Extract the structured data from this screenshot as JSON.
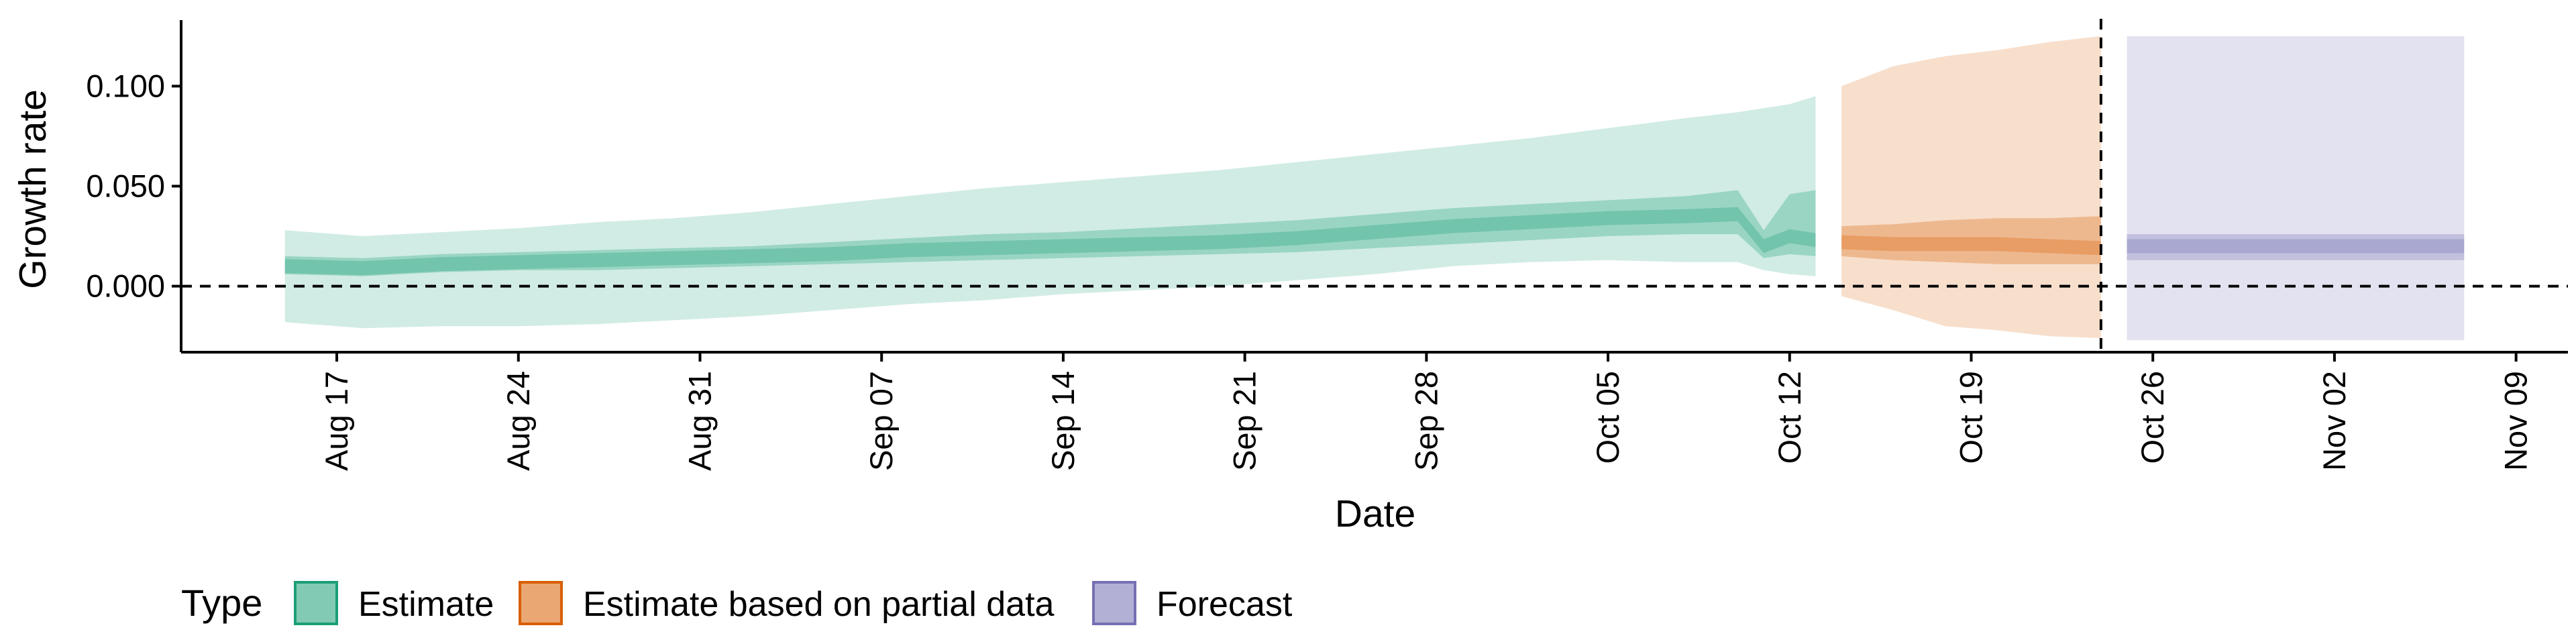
{
  "chart_data": {
    "type": "area",
    "xlabel": "Date",
    "ylabel": "Growth rate",
    "x_ticks": [
      "2020-08-17",
      "2020-08-24",
      "2020-08-31",
      "2020-09-07",
      "2020-09-14",
      "2020-09-21",
      "2020-09-28",
      "2020-10-05",
      "2020-10-12",
      "2020-10-19",
      "2020-10-26",
      "2020-11-02",
      "2020-11-09"
    ],
    "x_tick_labels": [
      "Aug 17",
      "Aug 24",
      "Aug 31",
      "Sep 07",
      "Sep 14",
      "Sep 21",
      "Sep 28",
      "Oct 05",
      "Oct 12",
      "Oct 19",
      "Oct 26",
      "Nov 02",
      "Nov 09"
    ],
    "xlim": [
      "2020-08-11",
      "2020-11-11"
    ],
    "y_ticks": [
      0,
      0.05,
      0.1
    ],
    "y_tick_labels": [
      "0.000",
      "0.050",
      "0.100"
    ],
    "ylim": [
      -0.033,
      0.133
    ],
    "reference_lines": [
      {
        "axis": "y",
        "value": 0,
        "style": "dashed"
      },
      {
        "axis": "x",
        "value": "2020-10-24",
        "style": "dashed"
      }
    ],
    "legend": {
      "title": "Type",
      "position": "bottom",
      "entries": [
        {
          "label": "Estimate",
          "color": "#1b9e77"
        },
        {
          "label": "Estimate based on partial data",
          "color": "#d95f02"
        },
        {
          "label": "Forecast",
          "color": "#7570b3"
        }
      ]
    },
    "series": [
      {
        "name": "Estimate",
        "color": "#1b9e77",
        "x": [
          "2020-08-15",
          "2020-08-18",
          "2020-08-21",
          "2020-08-24",
          "2020-08-27",
          "2020-08-30",
          "2020-09-02",
          "2020-09-05",
          "2020-09-08",
          "2020-09-11",
          "2020-09-14",
          "2020-09-17",
          "2020-09-20",
          "2020-09-23",
          "2020-09-26",
          "2020-09-29",
          "2020-10-02",
          "2020-10-05",
          "2020-10-08",
          "2020-10-10",
          "2020-10-11",
          "2020-10-12",
          "2020-10-13"
        ],
        "median": [
          0.01,
          0.009,
          0.011,
          0.012,
          0.013,
          0.014,
          0.015,
          0.016,
          0.018,
          0.019,
          0.02,
          0.021,
          0.022,
          0.024,
          0.027,
          0.03,
          0.032,
          0.034,
          0.035,
          0.036,
          0.02,
          0.025,
          0.023
        ],
        "lower_50": [
          0.006,
          0.005,
          0.007,
          0.008,
          0.008,
          0.009,
          0.01,
          0.011,
          0.012,
          0.013,
          0.014,
          0.015,
          0.016,
          0.017,
          0.019,
          0.021,
          0.023,
          0.025,
          0.026,
          0.026,
          0.014,
          0.016,
          0.015
        ],
        "upper_50": [
          0.015,
          0.014,
          0.016,
          0.017,
          0.018,
          0.019,
          0.02,
          0.022,
          0.024,
          0.026,
          0.027,
          0.029,
          0.031,
          0.033,
          0.036,
          0.039,
          0.041,
          0.043,
          0.045,
          0.048,
          0.028,
          0.046,
          0.048
        ],
        "lower_90": [
          -0.018,
          -0.021,
          -0.02,
          -0.02,
          -0.019,
          -0.017,
          -0.015,
          -0.012,
          -0.009,
          -0.007,
          -0.004,
          -0.002,
          0.0,
          0.003,
          0.006,
          0.01,
          0.012,
          0.013,
          0.012,
          0.012,
          0.008,
          0.006,
          0.005
        ],
        "upper_90": [
          0.028,
          0.025,
          0.027,
          0.029,
          0.032,
          0.034,
          0.037,
          0.041,
          0.045,
          0.049,
          0.052,
          0.055,
          0.058,
          0.062,
          0.066,
          0.07,
          0.074,
          0.079,
          0.084,
          0.087,
          0.089,
          0.091,
          0.095
        ]
      },
      {
        "name": "Estimate based on partial data",
        "color": "#d95f02",
        "x": [
          "2020-10-14",
          "2020-10-16",
          "2020-10-18",
          "2020-10-20",
          "2020-10-22",
          "2020-10-24"
        ],
        "median": [
          0.022,
          0.021,
          0.021,
          0.021,
          0.02,
          0.019
        ],
        "lower_50": [
          0.015,
          0.013,
          0.012,
          0.011,
          0.011,
          0.011
        ],
        "upper_50": [
          0.03,
          0.031,
          0.033,
          0.034,
          0.034,
          0.035
        ],
        "lower_90": [
          -0.005,
          -0.012,
          -0.02,
          -0.022,
          -0.025,
          -0.026
        ],
        "upper_90": [
          0.1,
          0.11,
          0.115,
          0.118,
          0.122,
          0.125
        ]
      },
      {
        "name": "Forecast",
        "color": "#7570b3",
        "x": [
          "2020-10-25",
          "2020-11-07"
        ],
        "median": [
          0.02,
          0.02
        ],
        "lower_50": [
          0.013,
          0.013
        ],
        "upper_50": [
          0.026,
          0.026
        ],
        "lower_90": [
          -0.027,
          -0.027
        ],
        "upper_90": [
          0.125,
          0.125
        ]
      }
    ]
  }
}
